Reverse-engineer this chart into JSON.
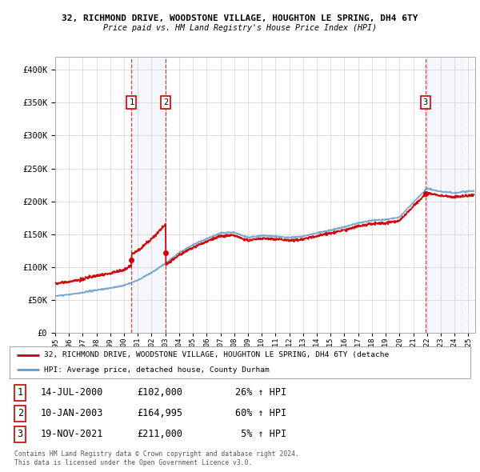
{
  "title1": "32, RICHMOND DRIVE, WOODSTONE VILLAGE, HOUGHTON LE SPRING, DH4 6TY",
  "title2": "Price paid vs. HM Land Registry's House Price Index (HPI)",
  "legend_line1": "32, RICHMOND DRIVE, WOODSTONE VILLAGE, HOUGHTON LE SPRING, DH4 6TY (detache",
  "legend_line2": "HPI: Average price, detached house, County Durham",
  "transactions": [
    {
      "num": 1,
      "date": "14-JUL-2000",
      "price": 102000,
      "pct": "26%",
      "dir": "↑",
      "x": 2000.54
    },
    {
      "num": 2,
      "date": "10-JAN-2003",
      "price": 164995,
      "pct": "60%",
      "dir": "↑",
      "x": 2003.03
    },
    {
      "num": 3,
      "date": "19-NOV-2021",
      "price": 211000,
      "pct": "5%",
      "dir": "↑",
      "x": 2021.88
    }
  ],
  "footer1": "Contains HM Land Registry data © Crown copyright and database right 2024.",
  "footer2": "This data is licensed under the Open Government Licence v3.0.",
  "ylim": [
    0,
    420000
  ],
  "xlim_start": 1995.0,
  "xlim_end": 2025.5,
  "bg_color": "#ffffff",
  "grid_color": "#cccccc",
  "red_color": "#cc0000",
  "blue_color": "#6699cc",
  "shade_color": "#ddeeff"
}
